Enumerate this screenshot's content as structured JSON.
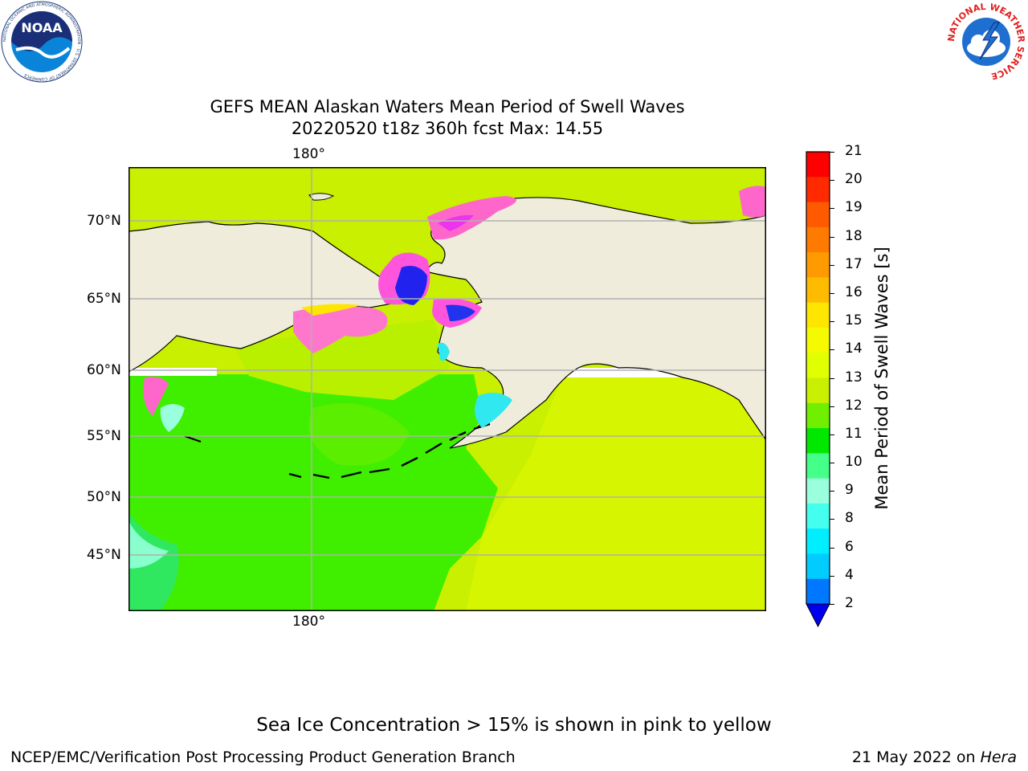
{
  "header": {
    "title_line1": "GEFS MEAN Alaskan Waters Mean Period of Swell Waves",
    "title_line2": "20220520 t18z 360h fcst   Max: 14.55"
  },
  "logos": {
    "noaa_text": "NOAA",
    "noaa_ring": "NATIONAL OCEANIC AND ATMOSPHERIC ADMINISTRATION · U.S. DEPARTMENT OF COMMERCE",
    "nws_ring": "NATIONAL WEATHER SERVICE"
  },
  "map": {
    "lon_label_top": "180°",
    "lon_label_bottom": "180°",
    "lat_labels": [
      "70°N",
      "65°N",
      "60°N",
      "55°N",
      "50°N",
      "45°N"
    ],
    "colors": {
      "land": "#efecdc",
      "ocean_main": "#c8f000",
      "ocean_west": "#40ee00",
      "ocean_nw": "#30e840",
      "ice_pink": "#ff66cc",
      "ice_magenta": "#ee33ee",
      "deep_blue": "#2222ee",
      "cyan": "#30f0f0",
      "coast": "#000000"
    }
  },
  "colorbar": {
    "label": "Mean Period of Swell Waves [s]",
    "ticks": [
      "21",
      "20",
      "19",
      "18",
      "17",
      "16",
      "15",
      "14",
      "13",
      "12",
      "11",
      "10",
      "9",
      "8",
      "6",
      "4",
      "2"
    ],
    "colors_top_to_bottom": [
      "#ff0000",
      "#ff2a00",
      "#ff5a00",
      "#ff7a00",
      "#ff9a00",
      "#ffbb00",
      "#ffe600",
      "#f5fa00",
      "#e0ff00",
      "#c8f000",
      "#70f000",
      "#00e800",
      "#44ff88",
      "#99ffdd",
      "#44ffee",
      "#00eeff",
      "#00ccff",
      "#0077ff"
    ],
    "extend_color": "#0000ee"
  },
  "footnote": "Sea Ice Concentration > 15% is shown in pink to yellow",
  "footer": {
    "left": "NCEP/EMC/Verification Post Processing Product Generation Branch",
    "right_prefix": "21 May 2022 on ",
    "right_machine": "Hera"
  }
}
